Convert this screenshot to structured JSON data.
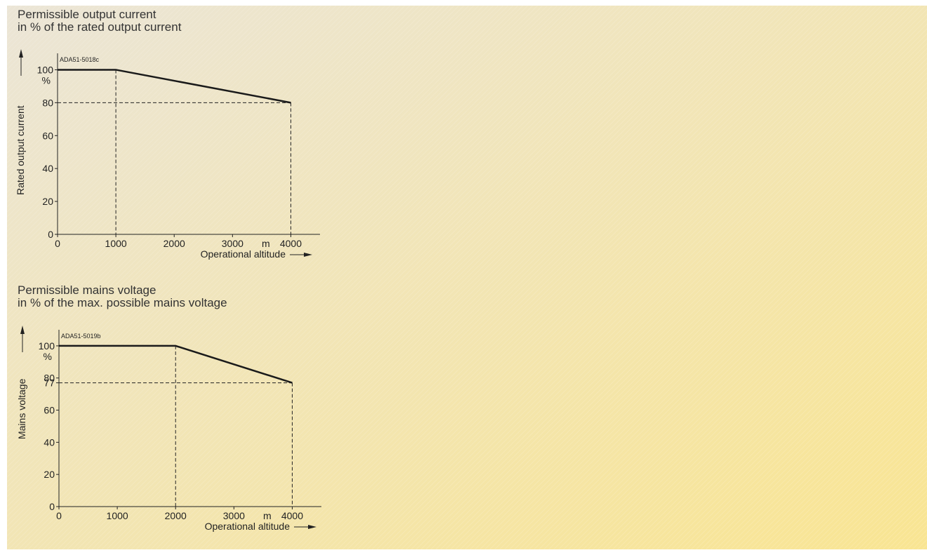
{
  "chart_data": [
    {
      "type": "line",
      "title": "Permissible output current",
      "subtitle": "in % of the rated output current",
      "figure_id": "ADA51-5018c",
      "ylabel": "Rated output current",
      "xlabel": "Operational altitude",
      "x_unit": "m",
      "y_unit": "%",
      "xlim": [
        0,
        4500
      ],
      "ylim": [
        0,
        110
      ],
      "x_ticks": [
        0,
        1000,
        2000,
        3000,
        4000
      ],
      "y_ticks": [
        0,
        20,
        40,
        60,
        80,
        100
      ],
      "series": [
        {
          "x": [
            0,
            1000,
            4000
          ],
          "y": [
            100,
            100,
            80
          ]
        }
      ],
      "reference_lines": {
        "x": [
          1000,
          4000
        ],
        "y": [
          80
        ]
      },
      "grid": false,
      "line_color": "#1a1a1a"
    },
    {
      "type": "line",
      "title": "Permissible mains voltage",
      "subtitle": "in % of the max. possible mains voltage",
      "figure_id": "ADA51-5019b",
      "ylabel": "Mains voltage",
      "xlabel": "Operational altitude",
      "x_unit": "m",
      "y_unit": "%",
      "xlim": [
        0,
        4500
      ],
      "ylim": [
        0,
        110
      ],
      "x_ticks": [
        0,
        1000,
        2000,
        3000,
        4000
      ],
      "y_ticks": [
        0,
        20,
        40,
        60,
        77,
        80,
        100
      ],
      "series": [
        {
          "x": [
            0,
            2000,
            4000
          ],
          "y": [
            100,
            100,
            77
          ]
        }
      ],
      "reference_lines": {
        "x": [
          2000,
          4000
        ],
        "y": [
          77
        ]
      },
      "grid": false,
      "line_color": "#1a1a1a"
    }
  ],
  "background": {
    "gradient_start": "#ebe5d6",
    "gradient_end": "#f9e592"
  }
}
